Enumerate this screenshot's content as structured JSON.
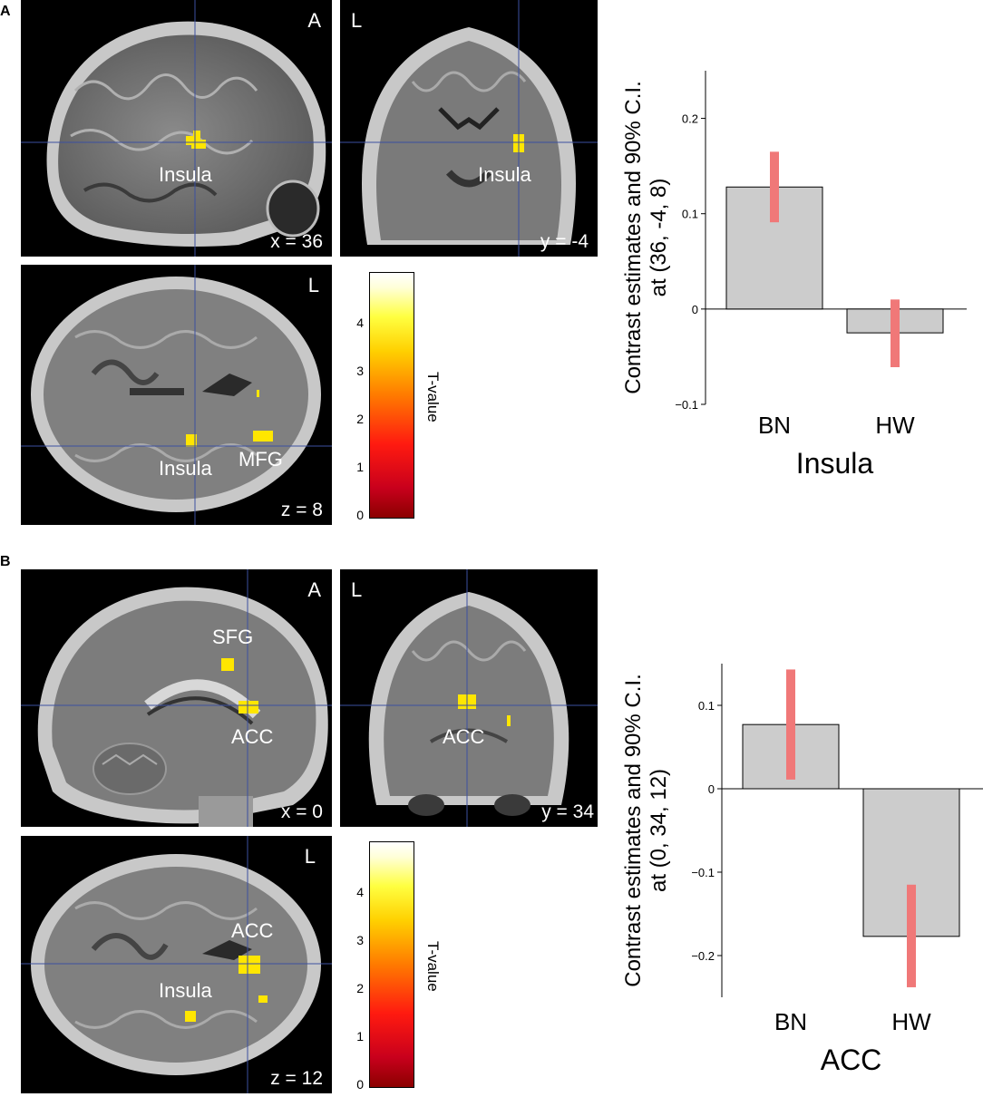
{
  "panels": [
    {
      "letter": "A",
      "sagittal": {
        "corner": "A",
        "coord": "x = 36",
        "labels": [
          "Insula"
        ]
      },
      "coronal": {
        "corner": "L",
        "coord": "y = -4",
        "labels": [
          "Insula"
        ]
      },
      "axial": {
        "corner": "L",
        "coord": "z = 8",
        "labels": [
          "Insula",
          "MFG"
        ]
      },
      "colorbar": {
        "title": "T-value",
        "ticks": [
          "0",
          "1",
          "2",
          "3",
          "4"
        ]
      }
    },
    {
      "letter": "B",
      "sagittal": {
        "corner": "A",
        "coord": "x = 0",
        "labels": [
          "SFG",
          "ACC"
        ]
      },
      "coronal": {
        "corner": "L",
        "coord": "y = 34",
        "labels": [
          "ACC"
        ]
      },
      "axial": {
        "corner": "L",
        "coord": "z = 12",
        "labels": [
          "ACC",
          "Insula"
        ]
      },
      "colorbar": {
        "title": "T-value",
        "ticks": [
          "0",
          "1",
          "2",
          "3",
          "4"
        ]
      }
    }
  ],
  "chart_data": [
    {
      "type": "bar",
      "title": "Insula",
      "ylabel_line1": "Contrast estimates and 90% C.I.",
      "ylabel_line2": "at (36, -4, 8)",
      "categories": [
        "BN",
        "HW"
      ],
      "values": [
        0.128,
        -0.025
      ],
      "ci_low": [
        0.091,
        -0.061
      ],
      "ci_high": [
        0.165,
        0.01
      ],
      "ylim": [
        -0.1,
        0.25
      ],
      "yticks": [
        -0.1,
        0,
        0.1,
        0.2
      ],
      "ytick_labels": [
        "−0.1",
        "0",
        "0.1",
        "0.2"
      ],
      "bar_color": "#cccccc",
      "ci_color": "#f07878"
    },
    {
      "type": "bar",
      "title": "ACC",
      "ylabel_line1": "Contrast estimates and 90% C.I.",
      "ylabel_line2": "at (0, 34, 12)",
      "categories": [
        "BN",
        "HW"
      ],
      "values": [
        0.077,
        -0.177
      ],
      "ci_low": [
        0.011,
        -0.238
      ],
      "ci_high": [
        0.143,
        -0.115
      ],
      "ylim": [
        -0.25,
        0.15
      ],
      "yticks": [
        -0.2,
        -0.1,
        0,
        0.1
      ],
      "ytick_labels": [
        "−0.2",
        "−0.1",
        "0",
        "0.1"
      ],
      "bar_color": "#cccccc",
      "ci_color": "#f07878"
    }
  ]
}
